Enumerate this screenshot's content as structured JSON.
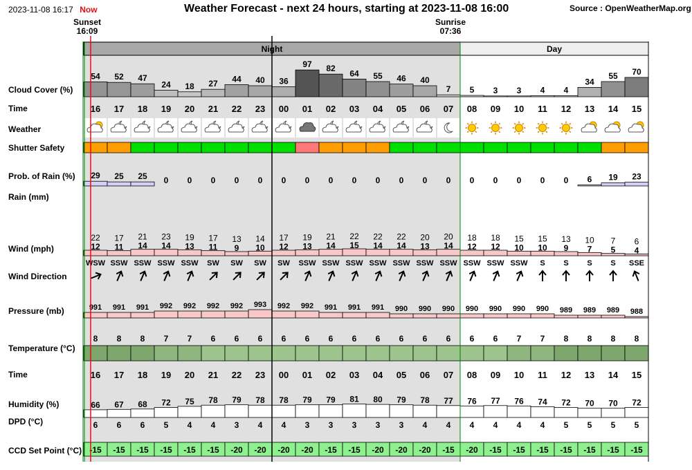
{
  "header": {
    "timestamp": "2023-11-08 16:17",
    "now_label": "Now",
    "title": "Weather Forecast - next 24 hours, starting at 2023-11-08 16:00",
    "source": "Source : OpenWeatherMap.org",
    "sunset_label": "Sunset",
    "sunset_time": "16:09",
    "sunrise_label": "Sunrise",
    "sunrise_time": "07:36",
    "night_label": "Night",
    "day_label": "Day"
  },
  "row_labels": {
    "cloud": "Cloud Cover (%)",
    "time": "Time",
    "weather": "Weather",
    "shutter": "Shutter Safety",
    "prob_rain": "Prob. of Rain (%)",
    "rain": "Rain (mm)",
    "wind": "Wind (mph)",
    "wind_dir": "Wind Direction",
    "pressure": "Pressure (mb)",
    "temperature": "Temperature (°C)",
    "time2": "Time",
    "humidity": "Humidity (%)",
    "dpd": "DPD (°C)",
    "ccd": "CCD Set Point (°C)"
  },
  "colors": {
    "night_bg": "#e0e0e0",
    "day_bg": "#ffffff",
    "shutter_orange": "#ff9e00",
    "shutter_green": "#00e000",
    "shutter_red": "#ff7878",
    "rain_prob": "#d4d0f8",
    "wind": "#f8c8c8",
    "pressure": "#f8c8c8",
    "ccd": "#8ef08e",
    "now_line": "#e01010",
    "sun_line": "#008000"
  },
  "chart_data": {
    "type": "table",
    "hours": [
      "16",
      "17",
      "18",
      "19",
      "20",
      "21",
      "22",
      "23",
      "00",
      "01",
      "02",
      "03",
      "04",
      "05",
      "06",
      "07",
      "08",
      "09",
      "10",
      "11",
      "12",
      "13",
      "14",
      "15"
    ],
    "period": [
      "night",
      "night",
      "night",
      "night",
      "night",
      "night",
      "night",
      "night",
      "night",
      "night",
      "night",
      "night",
      "night",
      "night",
      "night",
      "night",
      "day",
      "day",
      "day",
      "day",
      "day",
      "day",
      "day",
      "day"
    ],
    "cloud_cover": [
      54,
      52,
      47,
      24,
      18,
      27,
      44,
      40,
      36,
      97,
      82,
      64,
      55,
      46,
      40,
      7,
      5,
      3,
      3,
      4,
      4,
      34,
      55,
      70
    ],
    "weather_icons": [
      "partly-cloudy-day-icon",
      "partly-cloudy-night-icon",
      "partly-cloudy-night-icon",
      "partly-cloudy-night-icon",
      "partly-cloudy-night-icon",
      "partly-cloudy-night-icon",
      "partly-cloudy-night-icon",
      "partly-cloudy-night-icon",
      "partly-cloudy-night-icon",
      "cloud-icon",
      "partly-cloudy-night-icon",
      "partly-cloudy-night-icon",
      "partly-cloudy-night-icon",
      "partly-cloudy-night-icon",
      "partly-cloudy-night-icon",
      "moon-icon",
      "sun-icon",
      "sun-icon",
      "sun-icon",
      "sun-icon",
      "sun-icon",
      "partly-cloudy-day-icon",
      "partly-cloudy-day-icon",
      "partly-cloudy-day-icon"
    ],
    "shutter_safety": [
      "orange",
      "orange",
      "green",
      "green",
      "green",
      "green",
      "green",
      "green",
      "green",
      "red",
      "orange",
      "orange",
      "orange",
      "green",
      "green",
      "green",
      "green",
      "green",
      "green",
      "green",
      "green",
      "green",
      "orange",
      "orange"
    ],
    "prob_rain": [
      29,
      25,
      25,
      0,
      0,
      0,
      0,
      0,
      0,
      0,
      0,
      0,
      0,
      0,
      0,
      0,
      0,
      0,
      0,
      0,
      0,
      6,
      19,
      23
    ],
    "rain_mm": [
      0,
      0,
      0,
      0,
      0,
      0,
      0,
      0,
      0,
      0,
      0,
      0,
      0,
      0,
      0,
      0,
      0,
      0,
      0,
      0,
      0,
      0,
      0,
      0
    ],
    "wind_gust": [
      22,
      17,
      21,
      23,
      19,
      17,
      13,
      14,
      17,
      19,
      21,
      22,
      22,
      22,
      20,
      20,
      18,
      18,
      15,
      15,
      13,
      10,
      7,
      6
    ],
    "wind_speed": [
      12,
      11,
      14,
      14,
      13,
      11,
      9,
      10,
      12,
      13,
      14,
      15,
      14,
      14,
      13,
      14,
      12,
      12,
      10,
      10,
      9,
      7,
      5,
      4
    ],
    "wind_direction": [
      "WSW",
      "SSW",
      "SSW",
      "SSW",
      "SSW",
      "SW",
      "SW",
      "SW",
      "SW",
      "SSW",
      "SSW",
      "SSW",
      "SSW",
      "SSW",
      "SSW",
      "SSW",
      "SSW",
      "SSW",
      "SSW",
      "S",
      "S",
      "S",
      "S",
      "SSE"
    ],
    "wind_degrees": [
      248,
      203,
      203,
      203,
      203,
      225,
      225,
      225,
      225,
      203,
      203,
      203,
      203,
      203,
      203,
      203,
      203,
      203,
      203,
      180,
      180,
      180,
      180,
      158
    ],
    "pressure": [
      991,
      991,
      991,
      992,
      992,
      992,
      992,
      993,
      992,
      992,
      991,
      991,
      991,
      990,
      990,
      990,
      990,
      990,
      990,
      990,
      989,
      989,
      989,
      988
    ],
    "temperature": [
      8,
      8,
      8,
      7,
      7,
      6,
      6,
      6,
      6,
      6,
      6,
      6,
      6,
      6,
      6,
      6,
      6,
      6,
      7,
      7,
      8,
      8,
      8,
      8
    ],
    "humidity": [
      66,
      67,
      68,
      72,
      75,
      78,
      79,
      78,
      78,
      79,
      79,
      81,
      80,
      79,
      78,
      77,
      76,
      77,
      76,
      74,
      72,
      70,
      70,
      72
    ],
    "dpd": [
      6,
      6,
      6,
      5,
      4,
      4,
      3,
      4,
      4,
      3,
      3,
      3,
      3,
      3,
      4,
      4,
      4,
      4,
      4,
      4,
      5,
      5,
      5,
      5
    ],
    "ccd_set_point": [
      -15,
      -15,
      -15,
      -15,
      -15,
      -15,
      -20,
      -20,
      -20,
      -20,
      -15,
      -15,
      -20,
      -20,
      -20,
      -15,
      -20,
      -15,
      -15,
      -15,
      -15,
      -15,
      -15,
      -15
    ]
  }
}
